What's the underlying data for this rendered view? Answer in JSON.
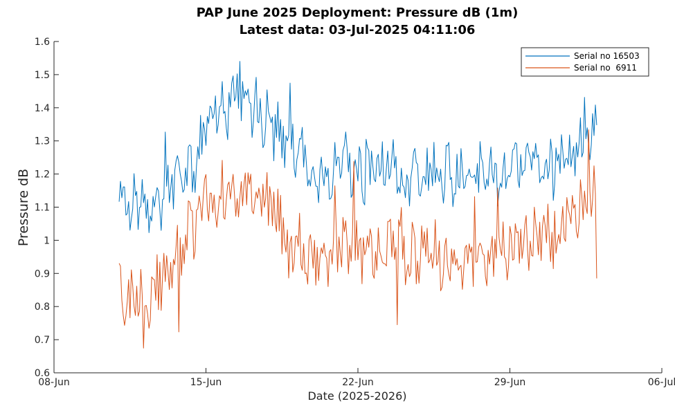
{
  "chart_data": {
    "type": "line",
    "title": "PAP June 2025 Deployment:  Pressure dB (1m)",
    "subtitle": "Latest data: 03-Jul-2025 04:11:06",
    "xlabel": "Date (2025-2026)",
    "ylabel": "Pressure dB",
    "xlim": [
      "2025-06-08",
      "2025-07-06"
    ],
    "ylim": [
      0.6,
      1.6
    ],
    "x_ticks": [
      "08-Jun",
      "15-Jun",
      "22-Jun",
      "29-Jun",
      "06-Jul"
    ],
    "y_ticks": [
      "0.6",
      "0.7",
      "0.8",
      "0.9",
      "1",
      "1.1",
      "1.2",
      "1.3",
      "1.4",
      "1.5",
      "1.6"
    ],
    "grid": false,
    "legend_position": "top-right",
    "series": [
      {
        "name": "Serial no 16503",
        "color": "#0072BD",
        "x": [
          "2025-06-11",
          "2025-06-11T12:00",
          "2025-06-12",
          "2025-06-12T12:00",
          "2025-06-13",
          "2025-06-13T12:00",
          "2025-06-14",
          "2025-06-14T12:00",
          "2025-06-15",
          "2025-06-15T12:00",
          "2025-06-16",
          "2025-06-16T12:00",
          "2025-06-17",
          "2025-06-17T12:00",
          "2025-06-18",
          "2025-06-18T12:00",
          "2025-06-19",
          "2025-06-19T12:00",
          "2025-06-20",
          "2025-06-20T12:00",
          "2025-06-21",
          "2025-06-21T12:00",
          "2025-06-22",
          "2025-06-22T12:00",
          "2025-06-23",
          "2025-06-23T12:00",
          "2025-06-24",
          "2025-06-24T12:00",
          "2025-06-25",
          "2025-06-25T12:00",
          "2025-06-26",
          "2025-06-26T12:00",
          "2025-06-27",
          "2025-06-27T12:00",
          "2025-06-28",
          "2025-06-28T12:00",
          "2025-06-29",
          "2025-06-29T12:00",
          "2025-06-30",
          "2025-06-30T12:00",
          "2025-07-01",
          "2025-07-01T12:00",
          "2025-07-02",
          "2025-07-02T12:00",
          "2025-07-03"
        ],
        "values": [
          1.13,
          1.1,
          1.12,
          1.1,
          1.14,
          1.17,
          1.22,
          1.25,
          1.34,
          1.39,
          1.4,
          1.44,
          1.42,
          1.39,
          1.34,
          1.31,
          1.28,
          1.25,
          1.22,
          1.2,
          1.21,
          1.23,
          1.22,
          1.19,
          1.21,
          1.24,
          1.2,
          1.18,
          1.19,
          1.22,
          1.21,
          1.18,
          1.2,
          1.22,
          1.19,
          1.21,
          1.2,
          1.23,
          1.22,
          1.24,
          1.22,
          1.25,
          1.27,
          1.3,
          1.33
        ]
      },
      {
        "name": "Serial no  6911",
        "color": "#D95319",
        "x": [
          "2025-06-11",
          "2025-06-11T12:00",
          "2025-06-12",
          "2025-06-12T12:00",
          "2025-06-13",
          "2025-06-13T12:00",
          "2025-06-14",
          "2025-06-14T12:00",
          "2025-06-15",
          "2025-06-15T12:00",
          "2025-06-16",
          "2025-06-16T12:00",
          "2025-06-17",
          "2025-06-17T12:00",
          "2025-06-18",
          "2025-06-18T12:00",
          "2025-06-19",
          "2025-06-19T12:00",
          "2025-06-20",
          "2025-06-20T12:00",
          "2025-06-21",
          "2025-06-21T12:00",
          "2025-06-22",
          "2025-06-22T12:00",
          "2025-06-23",
          "2025-06-23T12:00",
          "2025-06-24",
          "2025-06-24T12:00",
          "2025-06-25",
          "2025-06-25T12:00",
          "2025-06-26",
          "2025-06-26T12:00",
          "2025-06-27",
          "2025-06-27T12:00",
          "2025-06-28",
          "2025-06-28T12:00",
          "2025-06-29",
          "2025-06-29T12:00",
          "2025-06-30",
          "2025-06-30T12:00",
          "2025-07-01",
          "2025-07-01T12:00",
          "2025-07-02",
          "2025-07-02T12:00",
          "2025-07-03"
        ],
        "values": [
          0.83,
          0.8,
          0.84,
          0.86,
          0.9,
          0.96,
          1.0,
          1.05,
          1.09,
          1.12,
          1.14,
          1.16,
          1.15,
          1.13,
          1.1,
          1.05,
          1.0,
          0.97,
          0.95,
          0.94,
          0.96,
          0.98,
          0.97,
          0.95,
          0.97,
          1.0,
          0.98,
          0.95,
          0.96,
          0.98,
          0.95,
          0.93,
          0.94,
          0.97,
          0.95,
          0.97,
          0.98,
          1.0,
          1.0,
          1.01,
          1.03,
          1.05,
          1.07,
          1.1,
          1.13
        ]
      }
    ]
  }
}
